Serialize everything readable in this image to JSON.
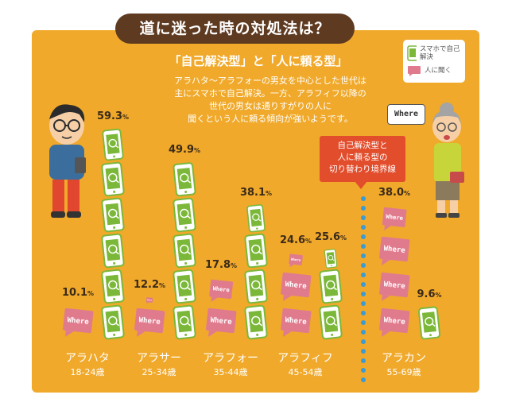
{
  "header": {
    "title": "道に迷った時の対処法は？"
  },
  "intro": {
    "subtitle": "「自己解決型」と「人に頼る型」",
    "lines": [
      "アラハタ〜アラフォーの男女を中心とした世代は",
      "主にスマホで自己解決。一方、アラフィフ以降の",
      "世代の男女は通りすがりの人に",
      "聞くという人に頼る傾向が強いようです。"
    ]
  },
  "callout": {
    "lines": [
      "自己解決型と",
      "人に頼る型の",
      "切り替わり境界線"
    ]
  },
  "where_text": "Where",
  "chart_data": {
    "type": "bar",
    "categories": [
      "アラハタ",
      "アラサー",
      "アラフォー",
      "アラフィフ",
      "アラカン"
    ],
    "category_ranges": [
      "18-24歳",
      "25-34歳",
      "35-44歳",
      "45-54歳",
      "55-69歳"
    ],
    "series": [
      {
        "name": "スマホで自己解決",
        "values": [
          59.3,
          49.9,
          38.1,
          25.6,
          9.6
        ]
      },
      {
        "name": "人に聞く",
        "values": [
          10.1,
          12.2,
          17.8,
          24.6,
          38.0
        ]
      }
    ],
    "unit": "%",
    "legend_position": "top-right"
  },
  "colors": {
    "panel": "#f0a92a",
    "title_bg": "#5e3a20",
    "phone_green": "#7bb83a",
    "bubble_pink": "#e07b8e",
    "callout_red": "#e24d2c",
    "boundary_dots": "#3a9bd5"
  }
}
